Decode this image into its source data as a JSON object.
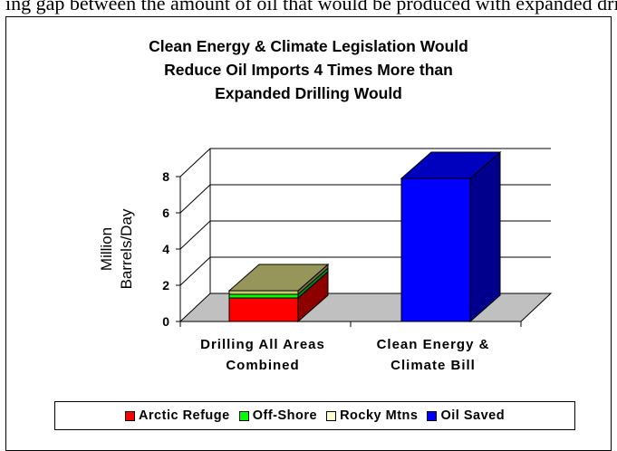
{
  "header_fragment": "ing gap between the amount of oil that would be produced with expanded drilling and",
  "chart_data": {
    "type": "bar",
    "title_lines": [
      "Clean Energy & Climate Legislation Would",
      "Reduce Oil Imports 4 Times More than",
      "Expanded Drilling Would"
    ],
    "ylabel_lines": [
      "Million",
      "Barrels/Day"
    ],
    "ylim": [
      0,
      8
    ],
    "yticks": [
      "0",
      "2",
      "4",
      "6",
      "8"
    ],
    "categories": [
      {
        "lines": [
          "Drilling All Areas",
          "Combined"
        ]
      },
      {
        "lines": [
          "Clean Energy &",
          "Climate Bill"
        ]
      }
    ],
    "series": [
      {
        "name": "Arctic Refuge",
        "color": "#ff0000",
        "values": [
          1.3,
          0
        ]
      },
      {
        "name": "Off-Shore",
        "color": "#00ff00",
        "values": [
          0.2,
          0
        ]
      },
      {
        "name": "Rocky Mtns",
        "color": "#c8c878",
        "values": [
          0.2,
          0
        ]
      },
      {
        "name": "Oil Saved",
        "color": "#0000ff",
        "values": [
          0,
          7.9
        ]
      }
    ],
    "grid": true,
    "legend_position": "bottom"
  }
}
